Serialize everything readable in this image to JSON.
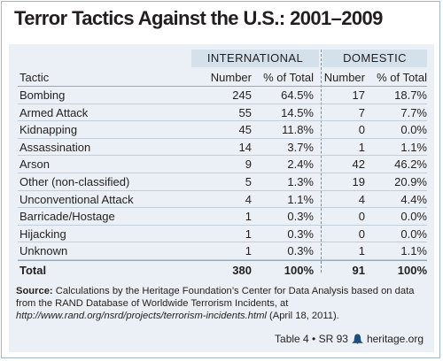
{
  "title": "Terror Tactics Against the U.S.: 2001–2009",
  "groups": {
    "international": "INTERNATIONAL",
    "domestic": "DOMESTIC"
  },
  "headers": {
    "tactic": "Tactic",
    "intl_number": "Number",
    "intl_pct": "% of Total",
    "dom_number": "Number",
    "dom_pct": "% of Total"
  },
  "rows": [
    {
      "tactic": "Bombing",
      "intl_number": "245",
      "intl_pct": "64.5%",
      "dom_number": "17",
      "dom_pct": "18.7%"
    },
    {
      "tactic": "Armed Attack",
      "intl_number": "55",
      "intl_pct": "14.5%",
      "dom_number": "7",
      "dom_pct": "7.7%"
    },
    {
      "tactic": "Kidnapping",
      "intl_number": "45",
      "intl_pct": "11.8%",
      "dom_number": "0",
      "dom_pct": "0.0%"
    },
    {
      "tactic": "Assassination",
      "intl_number": "14",
      "intl_pct": "3.7%",
      "dom_number": "1",
      "dom_pct": "1.1%"
    },
    {
      "tactic": "Arson",
      "intl_number": "9",
      "intl_pct": "2.4%",
      "dom_number": "42",
      "dom_pct": "46.2%"
    },
    {
      "tactic": "Other (non-classified)",
      "intl_number": "5",
      "intl_pct": "1.3%",
      "dom_number": "19",
      "dom_pct": "20.9%"
    },
    {
      "tactic": "Unconventional Attack",
      "intl_number": "4",
      "intl_pct": "1.1%",
      "dom_number": "4",
      "dom_pct": "4.4%"
    },
    {
      "tactic": "Barricade/Hostage",
      "intl_number": "1",
      "intl_pct": "0.3%",
      "dom_number": "0",
      "dom_pct": "0.0%"
    },
    {
      "tactic": "Hijacking",
      "intl_number": "1",
      "intl_pct": "0.3%",
      "dom_number": "0",
      "dom_pct": "0.0%"
    },
    {
      "tactic": "Unknown",
      "intl_number": "1",
      "intl_pct": "0.3%",
      "dom_number": "1",
      "dom_pct": "1.1%"
    }
  ],
  "total": {
    "tactic": "Total",
    "intl_number": "380",
    "intl_pct": "100%",
    "dom_number": "91",
    "dom_pct": "100%"
  },
  "source": {
    "label": "Source:",
    "text1": "Calculations by the Heritage Foundation’s Center for Data Analysis based on data from the RAND Database of Worldwide Terrorism Incidents, at",
    "url": "http://www.rand.org/nsrd/projects/terrorism-incidents.html",
    "text2": "(April 18, 2011)."
  },
  "footer": {
    "table_ref": "Table 4 • SR 93",
    "site": "heritage.org",
    "icon": "liberty-bell-icon",
    "icon_color": "#1f4e79"
  },
  "colors": {
    "panel": "#eaf0f5",
    "group_header": "#d4e0ea",
    "border": "#9fb6c9"
  }
}
